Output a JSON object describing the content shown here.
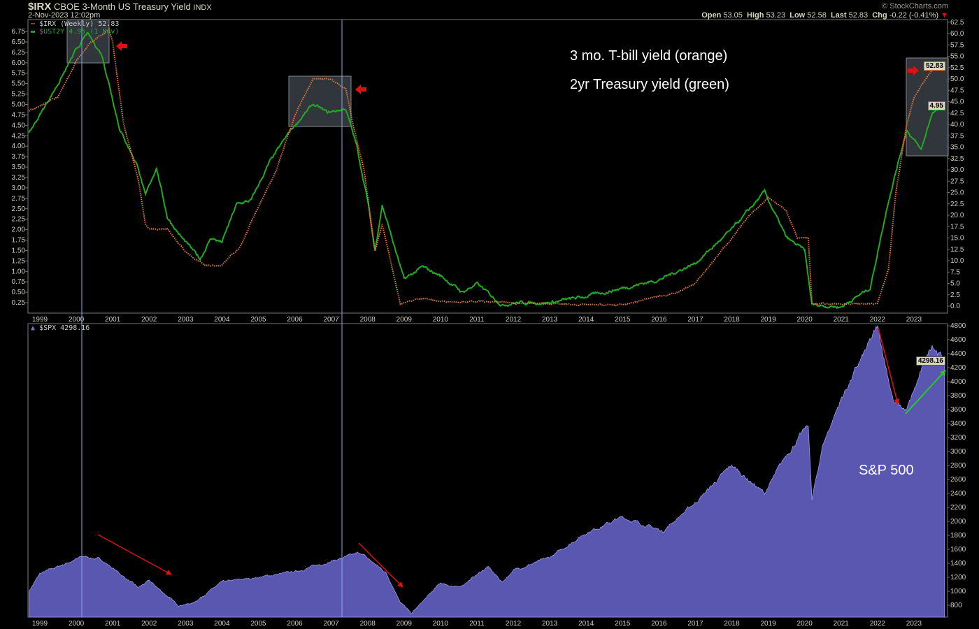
{
  "header": {
    "symbol": "$IRX",
    "name": "CBOE 3-Month US Treasury Yield",
    "exchange": "INDX",
    "datetime": "2-Nov-2023 12:02pm",
    "watermark": "© StockCharts.com",
    "open_label": "Open",
    "open": "53.05",
    "high_label": "High",
    "high": "53.23",
    "low_label": "Low",
    "low": "52.58",
    "last_label": "Last",
    "last": "52.83",
    "chg_label": "Chg",
    "chg": "-0.22 (-0.41%)",
    "chg_direction": "down"
  },
  "annotations": {
    "tbill": "3 mo. T-bill yield (orange)",
    "treasury2y": "2yr Treasury yield (green)",
    "sp500": "S&P 500"
  },
  "colors": {
    "irx": "#e07a3a",
    "ust2y": "#22a822",
    "spx_fill": "#5a57b0",
    "spx_line": "#9a98e8",
    "arrow_red": "#e01010",
    "arrow_green": "#20d020",
    "highlight_box": "#3a3f48"
  },
  "chart_data": [
    {
      "type": "line",
      "panel": "top",
      "legend_placement": "top-left",
      "x_ticks": [
        "1999",
        "2000",
        "2001",
        "2002",
        "2003",
        "2004",
        "2005",
        "2006",
        "2007",
        "2008",
        "2009",
        "2010",
        "2011",
        "2012",
        "2013",
        "2014",
        "2015",
        "2016",
        "2017",
        "2018",
        "2019",
        "2020",
        "2021",
        "2022",
        "2023"
      ],
      "y_left_ticks": [
        "0.25",
        "0.50",
        "0.75",
        "1.00",
        "1.25",
        "1.50",
        "1.75",
        "2.00",
        "2.25",
        "2.50",
        "2.75",
        "3.00",
        "3.25",
        "3.50",
        "3.75",
        "4.00",
        "4.25",
        "4.50",
        "4.75",
        "5.00",
        "5.25",
        "5.50",
        "5.75",
        "6.00",
        "6.25",
        "6.50",
        "6.75"
      ],
      "y_right_ticks": [
        "0.0",
        "2.5",
        "5.0",
        "7.5",
        "10.0",
        "12.5",
        "15.0",
        "17.5",
        "20.0",
        "22.5",
        "25.0",
        "27.5",
        "30.0",
        "32.5",
        "35.0",
        "37.5",
        "40.0",
        "42.5",
        "45.0",
        "47.5",
        "50.0",
        "52.5",
        "55.0",
        "57.5",
        "60.0",
        "62.5"
      ],
      "ylim_left": [
        0,
        7
      ],
      "ylim_right": [
        0,
        62.5
      ],
      "series": [
        {
          "name": "$IRX (Weekly) 52.83",
          "axis": "right",
          "style": "dotted",
          "last_label": "52.83",
          "points": [
            [
              1998.7,
              43
            ],
            [
              1999.0,
              44
            ],
            [
              1999.5,
              46
            ],
            [
              2000.0,
              54
            ],
            [
              2000.4,
              58
            ],
            [
              2000.9,
              61
            ],
            [
              2001.0,
              58
            ],
            [
              2001.3,
              40
            ],
            [
              2001.7,
              28
            ],
            [
              2001.9,
              18
            ],
            [
              2002.0,
              17
            ],
            [
              2002.5,
              17
            ],
            [
              2003.0,
              12
            ],
            [
              2003.5,
              9
            ],
            [
              2004.0,
              9
            ],
            [
              2004.5,
              13
            ],
            [
              2005.0,
              22
            ],
            [
              2005.5,
              30
            ],
            [
              2006.0,
              42
            ],
            [
              2006.5,
              50
            ],
            [
              2007.0,
              50
            ],
            [
              2007.4,
              48
            ],
            [
              2007.6,
              40
            ],
            [
              2007.9,
              30
            ],
            [
              2008.2,
              12
            ],
            [
              2008.4,
              18
            ],
            [
              2008.9,
              0.5
            ],
            [
              2009.5,
              1.8
            ],
            [
              2010,
              1
            ],
            [
              2011,
              1
            ],
            [
              2012,
              0.7
            ],
            [
              2013,
              0.5
            ],
            [
              2014,
              0.3
            ],
            [
              2015,
              0.2
            ],
            [
              2015.9,
              2
            ],
            [
              2016.5,
              3
            ],
            [
              2017,
              5
            ],
            [
              2017.5,
              10
            ],
            [
              2018,
              15
            ],
            [
              2018.5,
              20
            ],
            [
              2019,
              24
            ],
            [
              2019.5,
              21
            ],
            [
              2019.8,
              15
            ],
            [
              2020.1,
              15
            ],
            [
              2020.2,
              0.5
            ],
            [
              2021,
              0.5
            ],
            [
              2022,
              0.5
            ],
            [
              2022.3,
              8
            ],
            [
              2022.5,
              25
            ],
            [
              2022.8,
              40
            ],
            [
              2023.0,
              46
            ],
            [
              2023.5,
              52
            ],
            [
              2023.84,
              52.83
            ]
          ]
        },
        {
          "name": "$UST2Y 4.95 (1 Nov)",
          "axis": "left",
          "style": "solid",
          "last_label": "4.95",
          "points": [
            [
              1998.7,
              4.3
            ],
            [
              1999.5,
              5.5
            ],
            [
              2000.0,
              6.3
            ],
            [
              2000.3,
              6.7
            ],
            [
              2000.7,
              6.2
            ],
            [
              2000.9,
              5.5
            ],
            [
              2001.2,
              4.4
            ],
            [
              2001.7,
              3.5
            ],
            [
              2001.9,
              2.8
            ],
            [
              2002.2,
              3.5
            ],
            [
              2002.5,
              2.3
            ],
            [
              2002.9,
              1.8
            ],
            [
              2003.4,
              1.3
            ],
            [
              2003.7,
              1.8
            ],
            [
              2004.0,
              1.7
            ],
            [
              2004.4,
              2.6
            ],
            [
              2004.8,
              2.7
            ],
            [
              2005.3,
              3.6
            ],
            [
              2005.9,
              4.4
            ],
            [
              2006.5,
              5.0
            ],
            [
              2006.9,
              4.8
            ],
            [
              2007.4,
              4.9
            ],
            [
              2007.7,
              4.0
            ],
            [
              2008.0,
              2.7
            ],
            [
              2008.2,
              1.5
            ],
            [
              2008.4,
              2.6
            ],
            [
              2008.8,
              1.4
            ],
            [
              2009.0,
              0.8
            ],
            [
              2009.5,
              1.1
            ],
            [
              2010.0,
              0.9
            ],
            [
              2010.6,
              0.5
            ],
            [
              2011.0,
              0.7
            ],
            [
              2011.7,
              0.2
            ],
            [
              2012,
              0.25
            ],
            [
              2013,
              0.25
            ],
            [
              2014,
              0.4
            ],
            [
              2015,
              0.6
            ],
            [
              2016,
              0.8
            ],
            [
              2017,
              1.2
            ],
            [
              2018,
              2.0
            ],
            [
              2018.9,
              2.9
            ],
            [
              2019.5,
              1.8
            ],
            [
              2020.0,
              1.5
            ],
            [
              2020.2,
              0.2
            ],
            [
              2021,
              0.15
            ],
            [
              2021.8,
              0.6
            ],
            [
              2022.3,
              2.7
            ],
            [
              2022.8,
              4.4
            ],
            [
              2023.2,
              3.9
            ],
            [
              2023.5,
              4.8
            ],
            [
              2023.84,
              4.95
            ]
          ]
        }
      ]
    },
    {
      "type": "area",
      "panel": "bottom",
      "legend_placement": "top-left",
      "x_ticks": [
        "1999",
        "2000",
        "2001",
        "2002",
        "2003",
        "2004",
        "2005",
        "2006",
        "2007",
        "2008",
        "2009",
        "2010",
        "2011",
        "2012",
        "2013",
        "2014",
        "2015",
        "2016",
        "2017",
        "2018",
        "2019",
        "2020",
        "2021",
        "2022",
        "2023"
      ],
      "y_right_ticks": [
        "800",
        "1000",
        "1200",
        "1400",
        "1600",
        "1800",
        "2000",
        "2200",
        "2400",
        "2600",
        "2800",
        "3000",
        "3200",
        "3400",
        "3600",
        "3800",
        "4000",
        "4200",
        "4400",
        "4600",
        "4800"
      ],
      "ylim": [
        630,
        4800
      ],
      "series": [
        {
          "name": "$SPX 4298.16",
          "last_label": "4298.16",
          "points": [
            [
              1998.7,
              1000
            ],
            [
              1999,
              1250
            ],
            [
              2000.2,
              1500
            ],
            [
              2000.7,
              1450
            ],
            [
              2001.7,
              1050
            ],
            [
              2002.0,
              1150
            ],
            [
              2002.8,
              800
            ],
            [
              2003.2,
              830
            ],
            [
              2004,
              1130
            ],
            [
              2005,
              1200
            ],
            [
              2006,
              1280
            ],
            [
              2007,
              1430
            ],
            [
              2007.8,
              1550
            ],
            [
              2008.5,
              1270
            ],
            [
              2008.9,
              850
            ],
            [
              2009.2,
              680
            ],
            [
              2010,
              1120
            ],
            [
              2010.5,
              1050
            ],
            [
              2011.3,
              1350
            ],
            [
              2011.7,
              1130
            ],
            [
              2012,
              1300
            ],
            [
              2013,
              1480
            ],
            [
              2014,
              1840
            ],
            [
              2015,
              2060
            ],
            [
              2016.1,
              1860
            ],
            [
              2017,
              2270
            ],
            [
              2018,
              2800
            ],
            [
              2018.9,
              2400
            ],
            [
              2019.5,
              2950
            ],
            [
              2020.1,
              3380
            ],
            [
              2020.2,
              2300
            ],
            [
              2020.5,
              3100
            ],
            [
              2021,
              3750
            ],
            [
              2022.0,
              4770
            ],
            [
              2022.45,
              3700
            ],
            [
              2022.8,
              3580
            ],
            [
              2023.5,
              4550
            ],
            [
              2023.84,
              4298.16
            ]
          ]
        }
      ]
    }
  ]
}
